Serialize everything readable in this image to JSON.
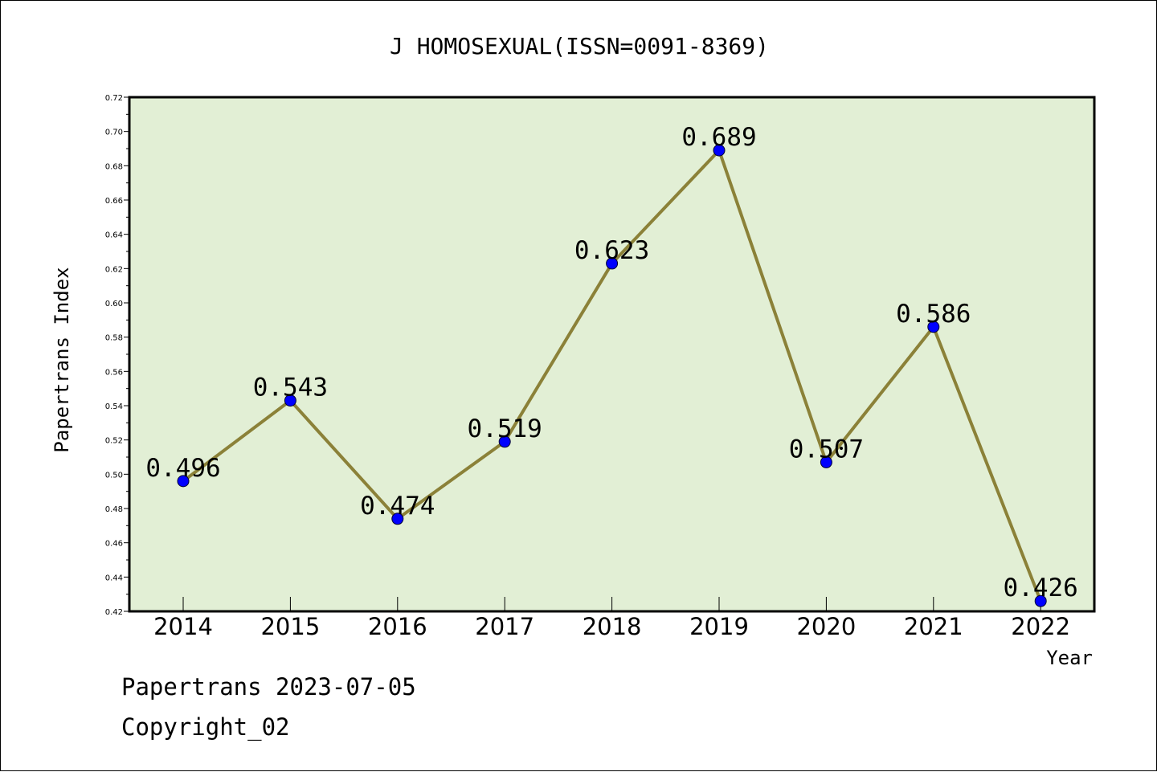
{
  "chart_data": {
    "type": "line",
    "title": "J HOMOSEXUAL(ISSN=0091-8369)",
    "xlabel": "Year",
    "ylabel": "Papertrans Index",
    "categories": [
      "2014",
      "2015",
      "2016",
      "2017",
      "2018",
      "2019",
      "2020",
      "2021",
      "2022"
    ],
    "series": [
      {
        "values": [
          0.496,
          0.543,
          0.474,
          0.519,
          0.623,
          0.689,
          0.507,
          0.586,
          0.426
        ],
        "data_labels": [
          "0.496",
          "0.543",
          "0.474",
          "0.519",
          "0.623",
          "0.689",
          "0.507",
          "0.586",
          "0.426"
        ]
      }
    ],
    "ylim": [
      0.42,
      0.72
    ],
    "yticks": [
      "0.42",
      "0.44",
      "0.46",
      "0.48",
      "0.50",
      "0.52",
      "0.54",
      "0.56",
      "0.58",
      "0.60",
      "0.62",
      "0.64",
      "0.66",
      "0.68",
      "0.70",
      "0.72"
    ],
    "grid": false,
    "legend": "none",
    "colors": {
      "plot_background": "#e2efd5",
      "line": "#8b8138",
      "marker": "#0000ff"
    }
  },
  "footer": {
    "date_line": "Papertrans 2023-07-05",
    "copyright": "Copyright_02"
  }
}
